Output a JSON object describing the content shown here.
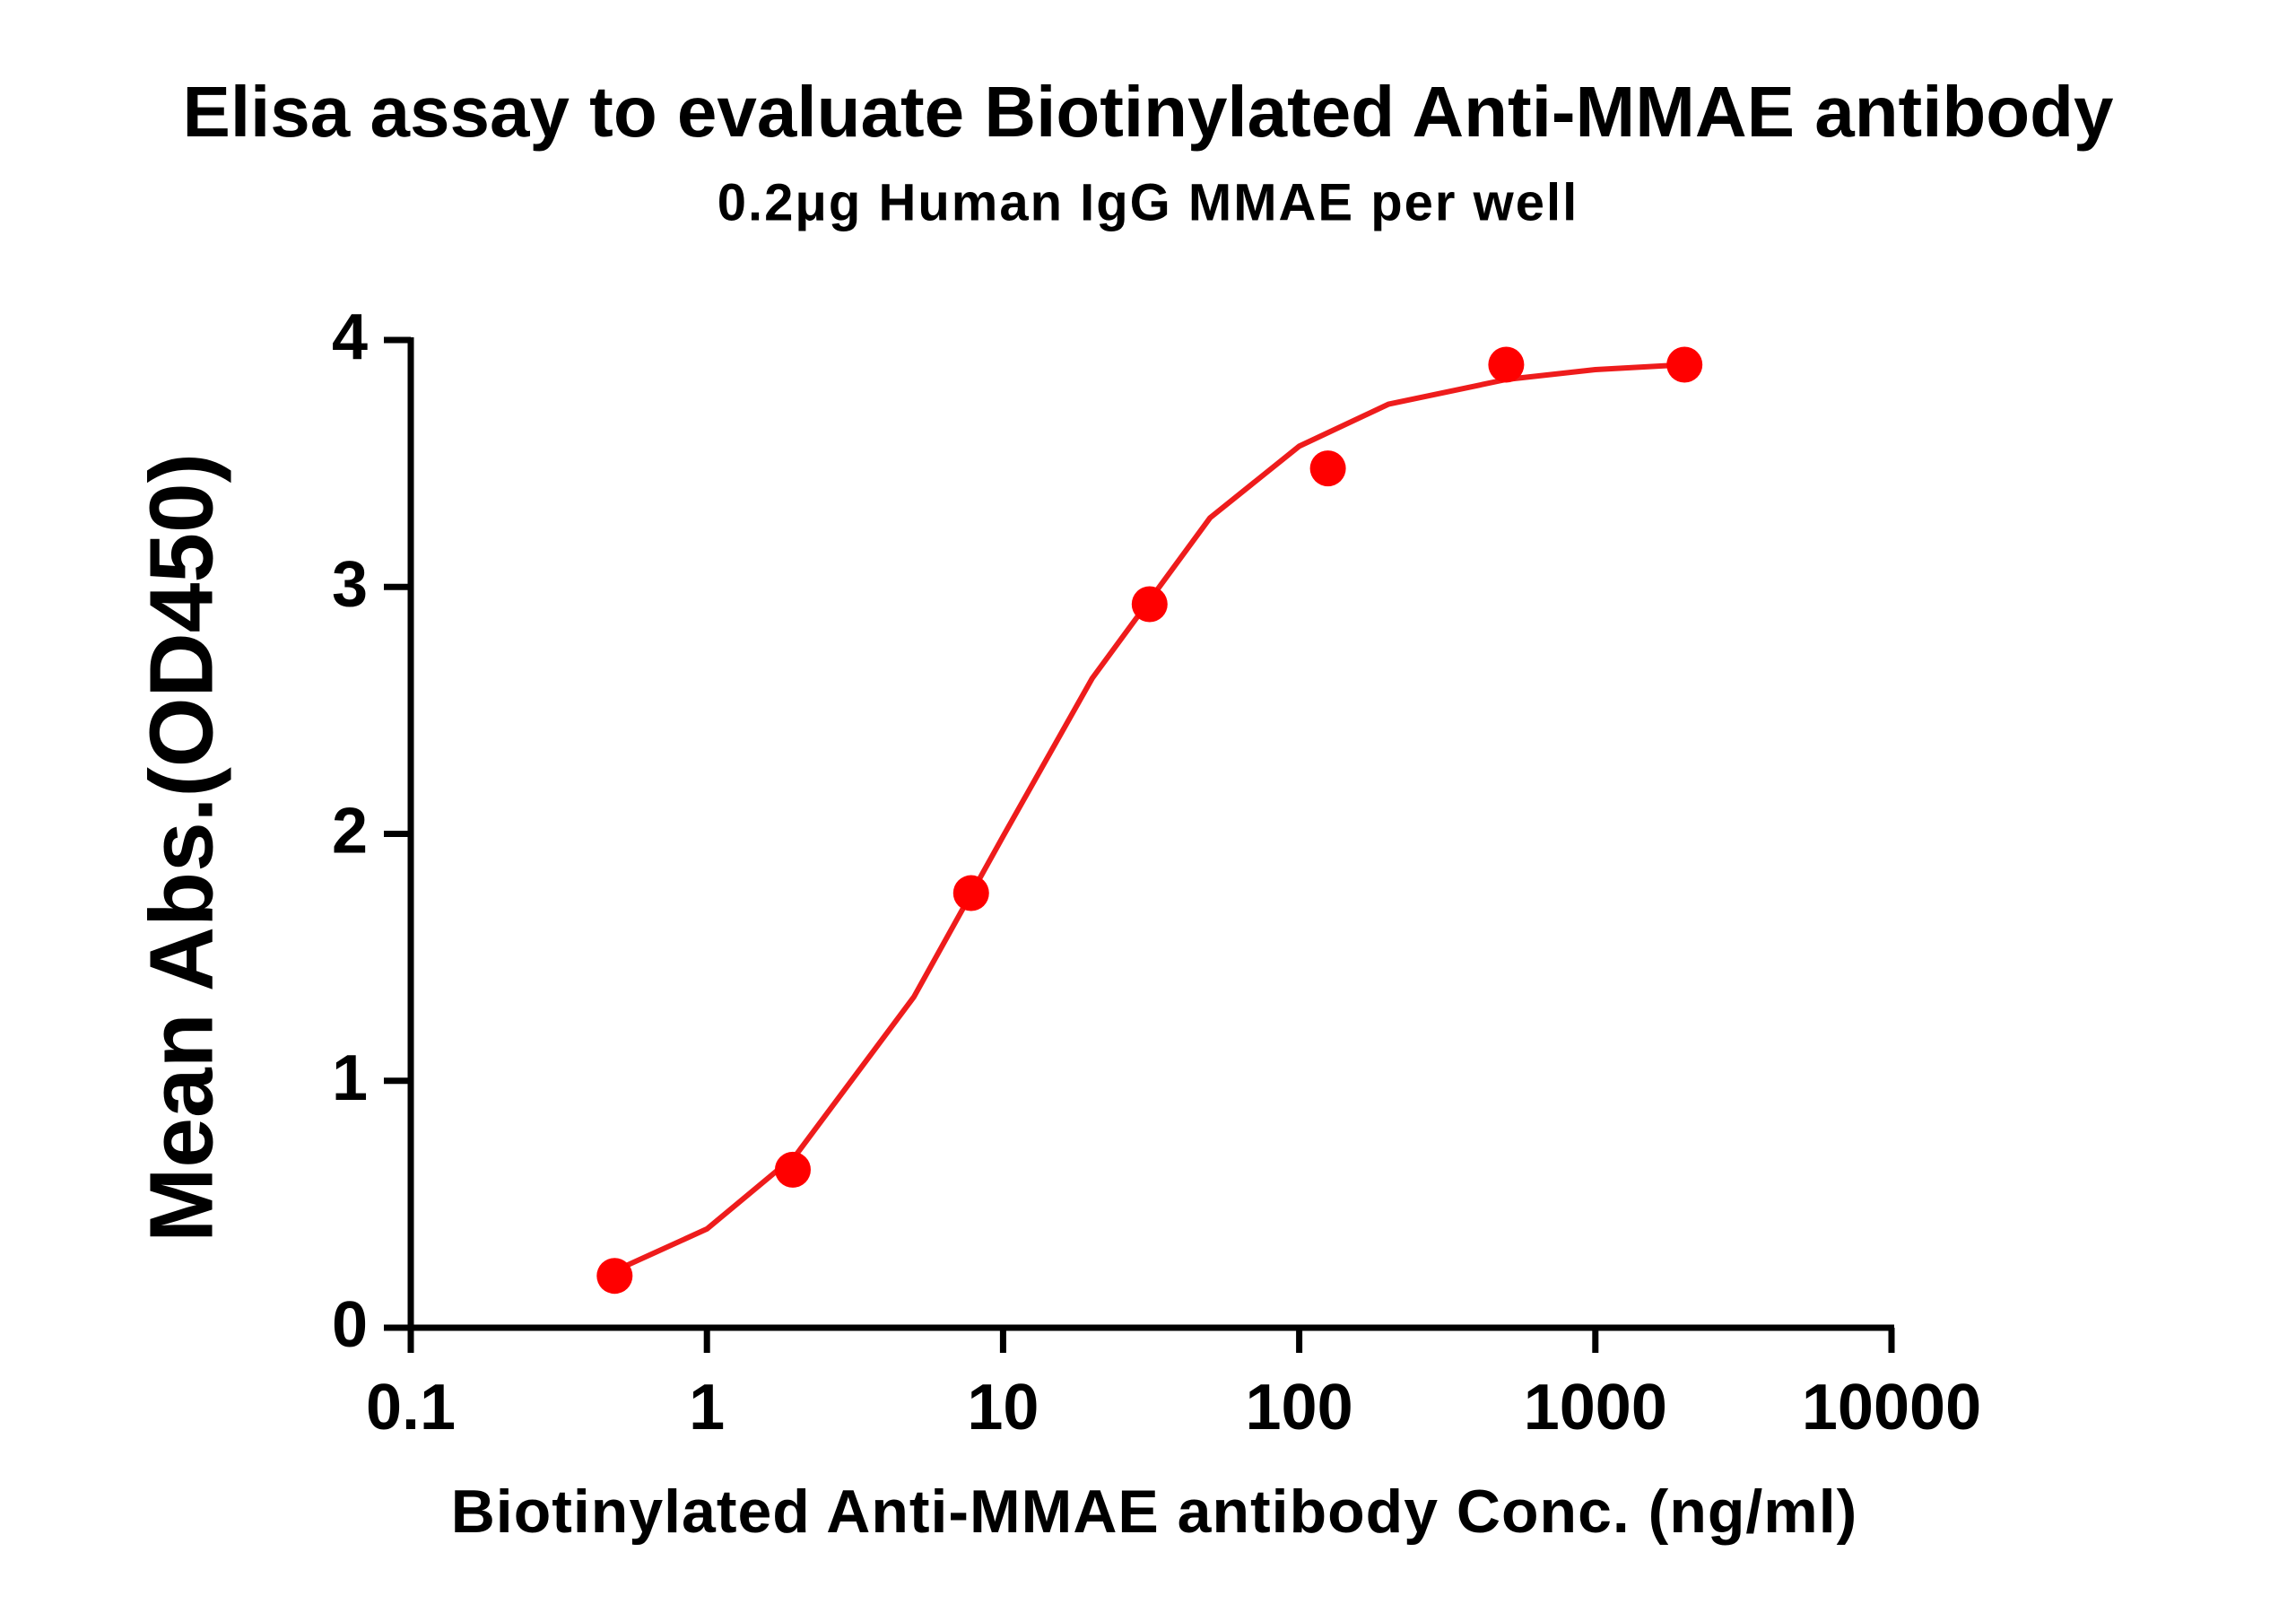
{
  "chart_data": {
    "type": "scatter",
    "title": "Elisa assay to evaluate Biotinylated Anti-MMAE antibody",
    "subtitle": "0.2μg Human IgG MMAE per well",
    "x_label": "Biotinylated Anti-MMAE antibody Conc. (ng/ml)",
    "y_label": "Mean Abs.(OD450)",
    "x": [
      0.488,
      1.95,
      7.8,
      31.25,
      125,
      500,
      2000
    ],
    "values": [
      0.21,
      0.64,
      1.76,
      2.93,
      3.48,
      3.9,
      3.9
    ],
    "color": "#ff0000",
    "fit": {
      "x": [
        0.488,
        1,
        2,
        5,
        10,
        20,
        50,
        100,
        200,
        500,
        1000,
        2000
      ],
      "values": [
        0.23,
        0.4,
        0.7,
        1.34,
        1.99,
        2.63,
        3.28,
        3.57,
        3.74,
        3.84,
        3.88,
        3.9
      ],
      "color": "#ee1c1c"
    },
    "x_log": true,
    "xlim": [
      0.1,
      10000
    ],
    "xticks": [
      0.1,
      1,
      10,
      100,
      1000,
      10000
    ],
    "ylim": [
      0,
      4
    ],
    "yticks": [
      0,
      1,
      2,
      3,
      4
    ],
    "grid": false
  }
}
